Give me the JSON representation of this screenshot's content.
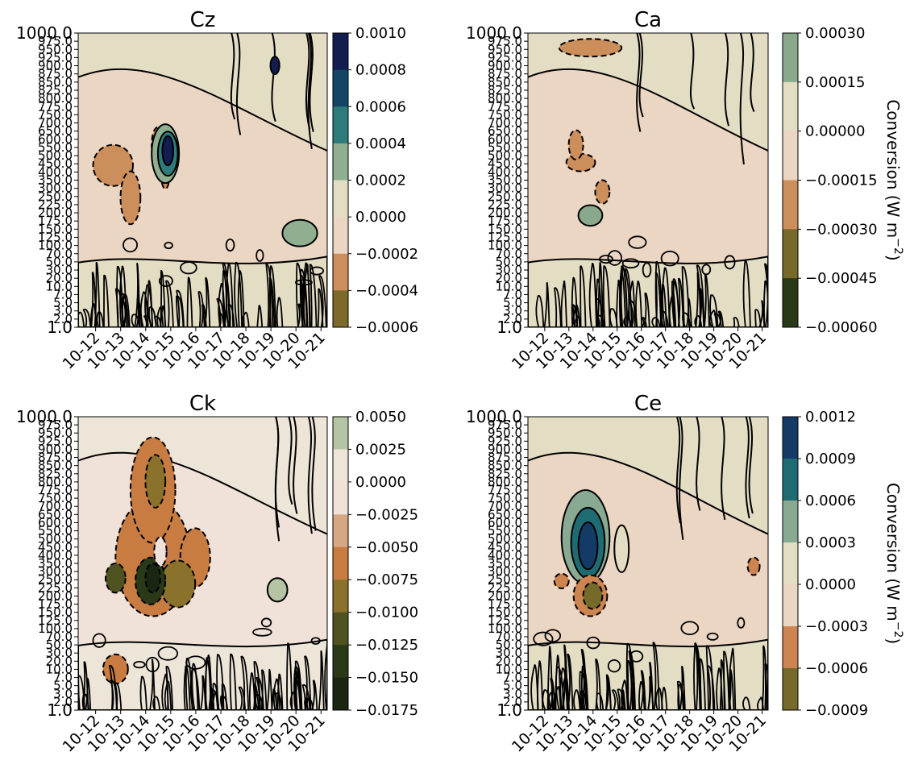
{
  "figure": {
    "colorbar_label": "Conversion  (W m",
    "colorbar_label_exp": "−2",
    "colorbar_label_close": ")"
  },
  "chart_data": [
    {
      "type": "heatmap",
      "title": "Cz",
      "xlabel": "",
      "ylabel": "",
      "x_ticks": [
        "10-12",
        "10-13",
        "10-14",
        "10-15",
        "10-16",
        "10-17",
        "10-18",
        "10-19",
        "10-20",
        "10-21"
      ],
      "y_ticks": [
        "1.0",
        "2.0",
        "3.0",
        "5.0",
        "7.0",
        "10.0",
        "20.0",
        "30.0",
        "50.0",
        "70.0",
        "100.0",
        "125.0",
        "150.0",
        "175.0",
        "200.0",
        "225.0",
        "250.0",
        "300.0",
        "350.0",
        "400.0",
        "450.0",
        "500.0",
        "550.0",
        "600.0",
        "650.0",
        "700.0",
        "750.0",
        "775.0",
        "800.0",
        "825.0",
        "850.0",
        "875.0",
        "900.0",
        "925.0",
        "950.0",
        "975.0",
        "1000.0"
      ],
      "colorbar": {
        "ticks": [
          "0.0010",
          "0.0008",
          "0.0006",
          "0.0004",
          "0.0002",
          "0.0000",
          "−0.0002",
          "−0.0004",
          "−0.0006"
        ],
        "levels": [
          0.001,
          0.0008,
          0.0006,
          0.0004,
          0.0002,
          0.0,
          -0.0002,
          -0.0004,
          -0.0006
        ],
        "colors": [
          "#131d50",
          "#144564",
          "#2d7b7a",
          "#8faf90",
          "#e3ddc4",
          "#ebd5c3",
          "#cc8e5a",
          "#7d6a2a"
        ],
        "label": ""
      },
      "background_levels": [
        0.0,
        -0.0002
      ],
      "features": [
        {
          "kind": "negative_blob",
          "date": "10-12",
          "approx_min": -0.0004
        },
        {
          "kind": "negative_blob",
          "date": "10-14",
          "approx_min": -0.0004
        },
        {
          "kind": "positive_core",
          "date": "10-14",
          "approx_max": 0.0008
        },
        {
          "kind": "positive_blob",
          "date": "10-20",
          "approx_max": 0.0004
        }
      ],
      "grid": false
    },
    {
      "type": "heatmap",
      "title": "Ca",
      "xlabel": "",
      "ylabel": "",
      "x_ticks": [
        "10-12",
        "10-13",
        "10-14",
        "10-15",
        "10-16",
        "10-17",
        "10-18",
        "10-19",
        "10-20",
        "10-21"
      ],
      "y_ticks": [
        "1.0",
        "2.0",
        "3.0",
        "5.0",
        "7.0",
        "10.0",
        "20.0",
        "30.0",
        "50.0",
        "70.0",
        "100.0",
        "125.0",
        "150.0",
        "175.0",
        "200.0",
        "225.0",
        "250.0",
        "300.0",
        "350.0",
        "400.0",
        "450.0",
        "500.0",
        "550.0",
        "600.0",
        "650.0",
        "700.0",
        "750.0",
        "775.0",
        "800.0",
        "825.0",
        "850.0",
        "875.0",
        "900.0",
        "925.0",
        "950.0",
        "975.0",
        "1000.0"
      ],
      "colorbar": {
        "ticks": [
          "0.00030",
          "0.00015",
          "0.00000",
          "−0.00015",
          "−0.00030",
          "−0.00045",
          "−0.00060"
        ],
        "levels": [
          0.0003,
          0.00015,
          0.0,
          -0.00015,
          -0.0003,
          -0.00045,
          -0.0006
        ],
        "colors": [
          "#8aa98c",
          "#e3ddc4",
          "#ebd5c3",
          "#cc8e5a",
          "#766a2a",
          "#2a3a18"
        ],
        "label": "Conversion  (W m^-2)"
      },
      "background_levels": [
        0.0,
        -0.00015
      ],
      "features": [
        {
          "kind": "negative_blob",
          "date": "10-13",
          "approx_min": -0.0003
        },
        {
          "kind": "positive_blob",
          "date": "10-14",
          "approx_max": 0.00015
        }
      ],
      "grid": false
    },
    {
      "type": "heatmap",
      "title": "Ck",
      "xlabel": "",
      "ylabel": "",
      "x_ticks": [
        "10-12",
        "10-13",
        "10-14",
        "10-15",
        "10-16",
        "10-17",
        "10-18",
        "10-19",
        "10-20",
        "10-21"
      ],
      "y_ticks": [
        "1.0",
        "2.0",
        "3.0",
        "5.0",
        "7.0",
        "10.0",
        "20.0",
        "30.0",
        "50.0",
        "70.0",
        "100.0",
        "125.0",
        "150.0",
        "175.0",
        "200.0",
        "225.0",
        "250.0",
        "300.0",
        "350.0",
        "400.0",
        "450.0",
        "500.0",
        "550.0",
        "600.0",
        "650.0",
        "700.0",
        "750.0",
        "775.0",
        "800.0",
        "825.0",
        "850.0",
        "875.0",
        "900.0",
        "925.0",
        "950.0",
        "975.0",
        "1000.0"
      ],
      "colorbar": {
        "ticks": [
          "0.0050",
          "0.0025",
          "0.0000",
          "−0.0025",
          "−0.0050",
          "−0.0075",
          "−0.0100",
          "−0.0125",
          "−0.0150",
          "−0.0175"
        ],
        "levels": [
          0.005,
          0.0025,
          0.0,
          -0.0025,
          -0.005,
          -0.0075,
          -0.01,
          -0.0125,
          -0.015,
          -0.0175
        ],
        "colors": [
          "#b6c4a6",
          "#ede5d7",
          "#f1e2d9",
          "#d7a783",
          "#c87c42",
          "#8a712c",
          "#4e5220",
          "#2a3a18",
          "#1b2612"
        ],
        "label": ""
      },
      "background_levels": [
        0.0,
        -0.0025
      ],
      "features": [
        {
          "kind": "negative_plume",
          "date": "10-13",
          "approx_min": -0.0125
        },
        {
          "kind": "negative_core",
          "date": "10-14",
          "approx_min": -0.015
        },
        {
          "kind": "positive_blob",
          "date": "10-20",
          "approx_max": 0.0025
        }
      ],
      "grid": false
    },
    {
      "type": "heatmap",
      "title": "Ce",
      "xlabel": "",
      "ylabel": "",
      "x_ticks": [
        "10-12",
        "10-13",
        "10-14",
        "10-15",
        "10-16",
        "10-17",
        "10-18",
        "10-19",
        "10-20",
        "10-21"
      ],
      "y_ticks": [
        "1.0",
        "2.0",
        "3.0",
        "5.0",
        "7.0",
        "10.0",
        "20.0",
        "30.0",
        "50.0",
        "70.0",
        "100.0",
        "125.0",
        "150.0",
        "175.0",
        "200.0",
        "225.0",
        "250.0",
        "300.0",
        "350.0",
        "400.0",
        "450.0",
        "500.0",
        "550.0",
        "600.0",
        "650.0",
        "700.0",
        "750.0",
        "775.0",
        "800.0",
        "825.0",
        "850.0",
        "875.0",
        "900.0",
        "925.0",
        "950.0",
        "975.0",
        "1000.0"
      ],
      "colorbar": {
        "ticks": [
          "0.0012",
          "0.0009",
          "0.0006",
          "0.0003",
          "0.0000",
          "−0.0003",
          "−0.0006",
          "−0.0009"
        ],
        "levels": [
          0.0012,
          0.0009,
          0.0006,
          0.0003,
          0.0,
          -0.0003,
          -0.0006,
          -0.0009
        ],
        "colors": [
          "#143a66",
          "#1f6b73",
          "#88aa92",
          "#e3ddc4",
          "#ebd5c3",
          "#cc8450",
          "#766a2a"
        ],
        "label": "Conversion  (W m^-2)"
      },
      "background_levels": [
        0.0,
        -0.0003
      ],
      "features": [
        {
          "kind": "positive_core",
          "date": "10-13",
          "approx_max": 0.0012
        },
        {
          "kind": "negative_blob",
          "date": "10-14",
          "approx_min": -0.0009
        },
        {
          "kind": "negative_blob",
          "date": "10-20",
          "approx_min": -0.0006
        }
      ],
      "grid": false
    }
  ]
}
